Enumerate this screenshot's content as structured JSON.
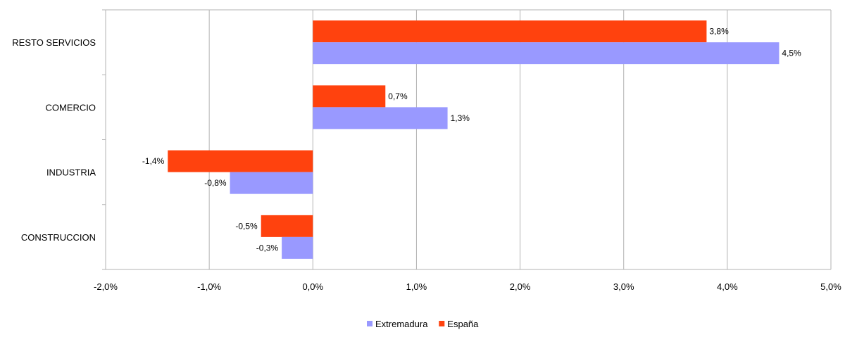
{
  "chart_data": {
    "type": "bar",
    "orientation": "horizontal",
    "categories": [
      "RESTO SERVICIOS",
      "COMERCIO",
      "INDUSTRIA",
      "CONSTRUCCION"
    ],
    "series": [
      {
        "name": "España",
        "color": "#ff420e",
        "values": [
          3.8,
          0.7,
          -1.4,
          -0.5
        ],
        "labels": [
          "3,8%",
          "0,7%",
          "-1,4%",
          "-0,5%"
        ]
      },
      {
        "name": "Extremadura",
        "color": "#9999ff",
        "values": [
          4.5,
          1.3,
          -0.8,
          -0.3
        ],
        "labels": [
          "4,5%",
          "1,3%",
          "-0,8%",
          "-0,3%"
        ]
      }
    ],
    "xlim": [
      -2.0,
      5.0
    ],
    "xticks": [
      -2,
      -1,
      0,
      1,
      2,
      3,
      4,
      5
    ],
    "xtick_labels": [
      "-2,0%",
      "-1,0%",
      "0,0%",
      "1,0%",
      "2,0%",
      "3,0%",
      "4,0%",
      "5,0%"
    ],
    "grid": "vertical",
    "legend": {
      "position": "bottom",
      "order": [
        "Extremadura",
        "España"
      ]
    }
  }
}
